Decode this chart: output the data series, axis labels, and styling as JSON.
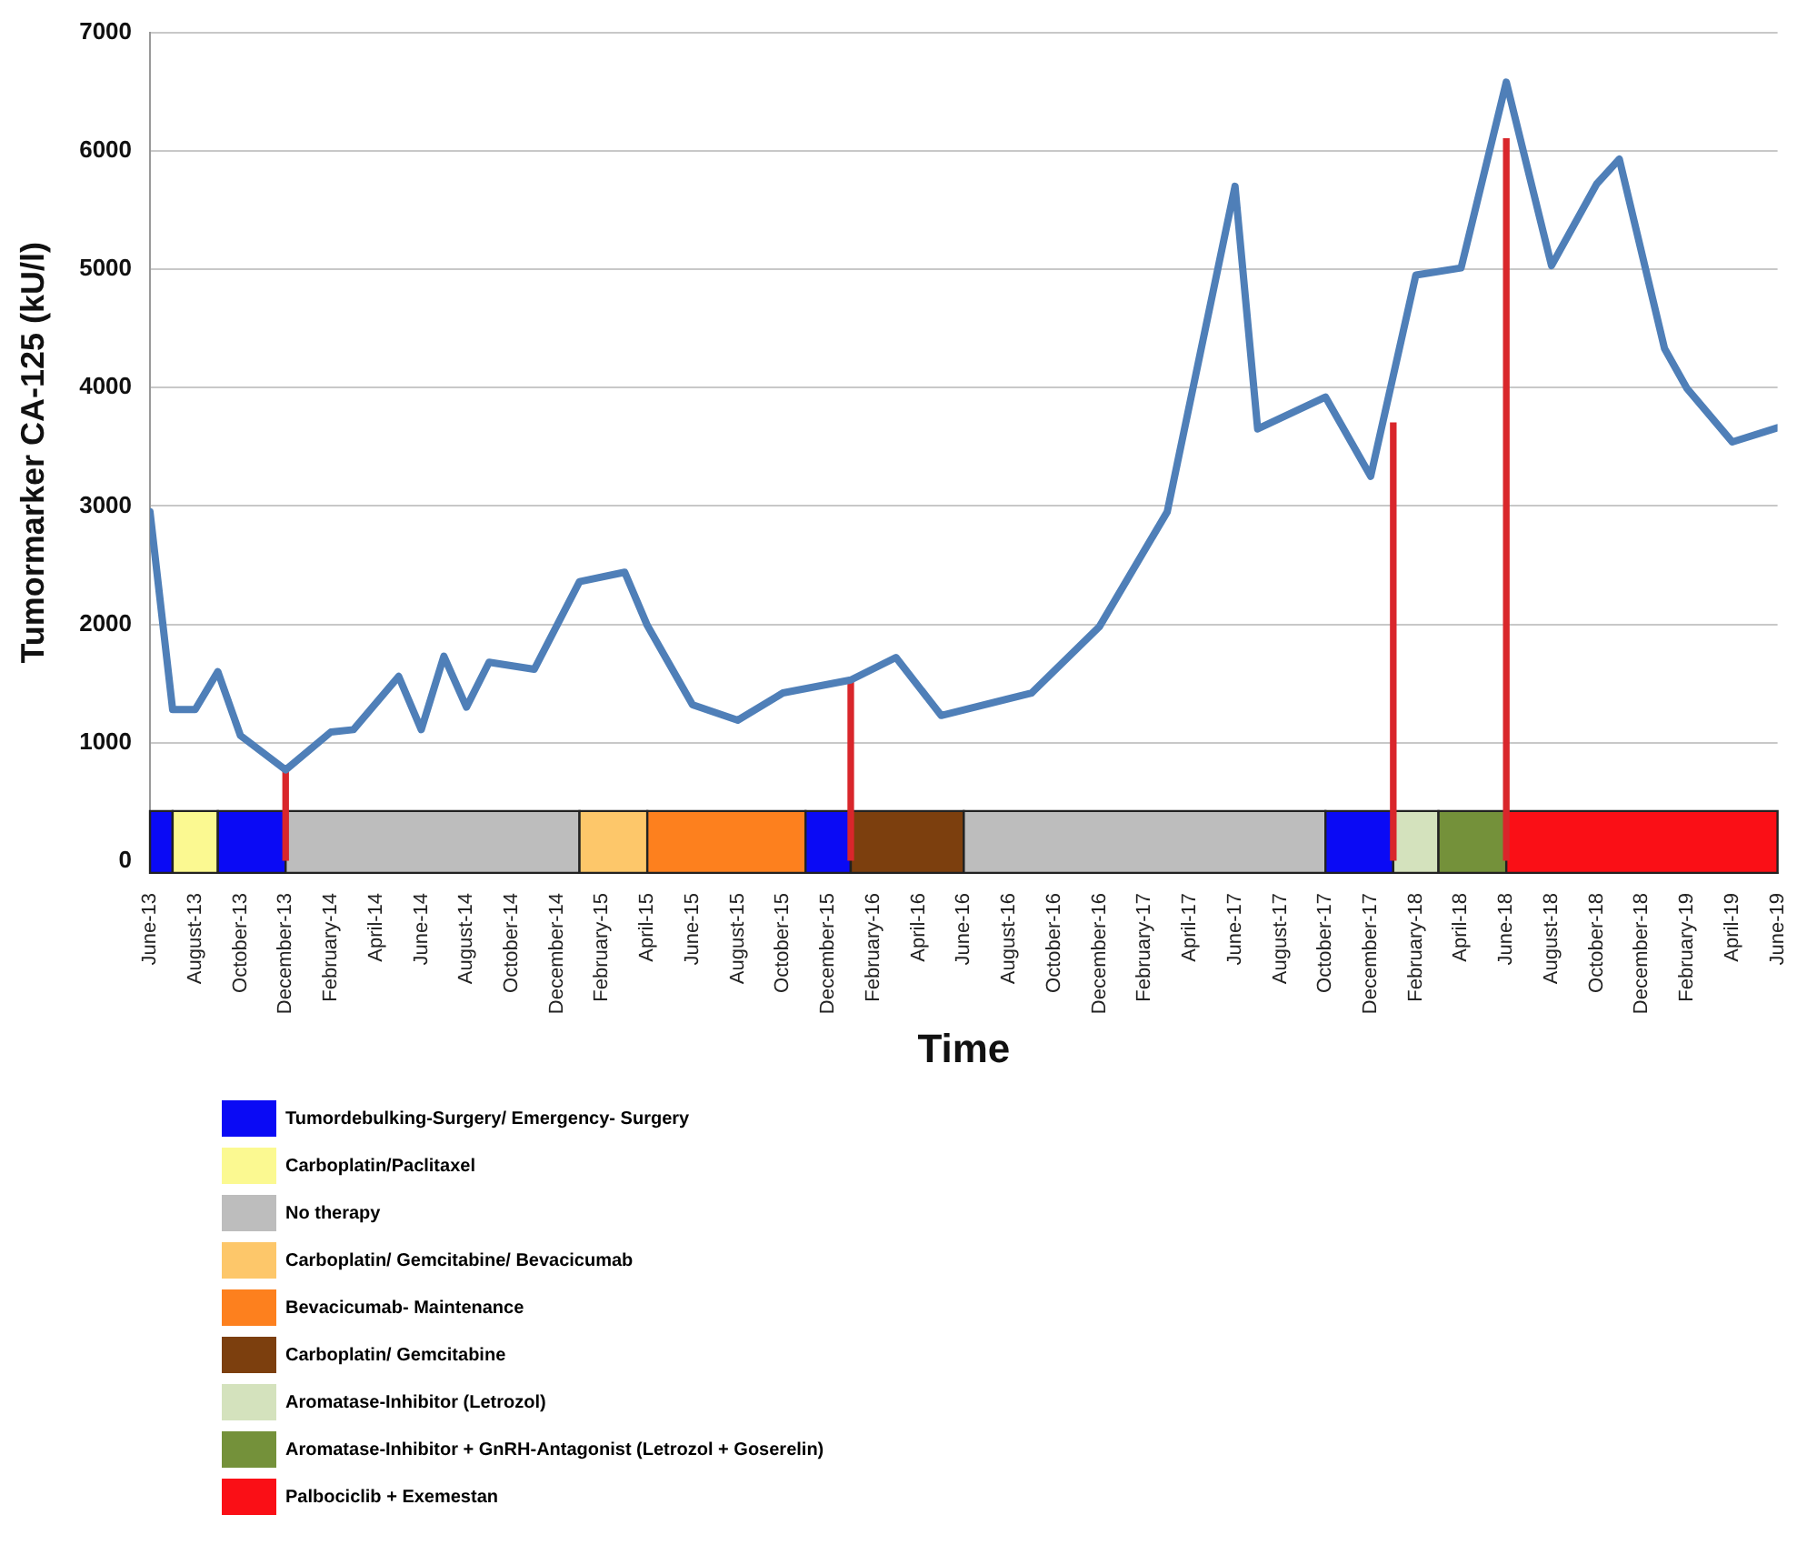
{
  "chart_data": {
    "type": "line",
    "ylabel": "Tumormarker CA-125 (kU/l)",
    "xlabel": "Time",
    "xlim": [
      "2013-06",
      "2019-06"
    ],
    "ylim": [
      -100,
      7000
    ],
    "yticks": [
      0,
      1000,
      2000,
      3000,
      4000,
      5000,
      6000,
      7000
    ],
    "xticks": [
      {
        "value": "2013-06",
        "label": "June-13"
      },
      {
        "value": "2013-08",
        "label": "August-13"
      },
      {
        "value": "2013-10",
        "label": "October-13"
      },
      {
        "value": "2013-12",
        "label": "December-13"
      },
      {
        "value": "2014-02",
        "label": "February-14"
      },
      {
        "value": "2014-04",
        "label": "April-14"
      },
      {
        "value": "2014-06",
        "label": "June-14"
      },
      {
        "value": "2014-08",
        "label": "August-14"
      },
      {
        "value": "2014-10",
        "label": "October-14"
      },
      {
        "value": "2014-12",
        "label": "December-14"
      },
      {
        "value": "2015-02",
        "label": "February-15"
      },
      {
        "value": "2015-04",
        "label": "April-15"
      },
      {
        "value": "2015-06",
        "label": "June-15"
      },
      {
        "value": "2015-08",
        "label": "August-15"
      },
      {
        "value": "2015-10",
        "label": "October-15"
      },
      {
        "value": "2015-12",
        "label": "December-15"
      },
      {
        "value": "2016-02",
        "label": "February-16"
      },
      {
        "value": "2016-04",
        "label": "April-16"
      },
      {
        "value": "2016-06",
        "label": "June-16"
      },
      {
        "value": "2016-08",
        "label": "August-16"
      },
      {
        "value": "2016-10",
        "label": "October-16"
      },
      {
        "value": "2016-12",
        "label": "December-16"
      },
      {
        "value": "2017-02",
        "label": "February-17"
      },
      {
        "value": "2017-04",
        "label": "April-17"
      },
      {
        "value": "2017-06",
        "label": "June-17"
      },
      {
        "value": "2017-08",
        "label": "August-17"
      },
      {
        "value": "2017-10",
        "label": "October-17"
      },
      {
        "value": "2017-12",
        "label": "December-17"
      },
      {
        "value": "2018-02",
        "label": "February-18"
      },
      {
        "value": "2018-04",
        "label": "April-18"
      },
      {
        "value": "2018-06",
        "label": "June-18"
      },
      {
        "value": "2018-08",
        "label": "August-18"
      },
      {
        "value": "2018-10",
        "label": "October-18"
      },
      {
        "value": "2018-12",
        "label": "December-18"
      },
      {
        "value": "2019-02",
        "label": "February-19"
      },
      {
        "value": "2019-04",
        "label": "April-19"
      },
      {
        "value": "2019-06",
        "label": "June-19"
      }
    ],
    "grid": "y",
    "legend": "bottom",
    "marker": "none",
    "line_style": "solid",
    "series": [
      {
        "color": "#4f7fb8",
        "x": [
          "2013-06",
          "2013-07",
          "2013-08",
          "2013-09",
          "2013-10",
          "2013-12",
          "2014-02",
          "2014-03",
          "2014-05",
          "2014-06",
          "2014-07",
          "2014-08",
          "2014-09",
          "2014-11",
          "2015-01",
          "2015-03",
          "2015-04",
          "2015-06",
          "2015-08",
          "2015-10",
          "2016-01",
          "2016-03",
          "2016-05",
          "2016-09",
          "2016-12",
          "2017-03",
          "2017-06",
          "2017-07",
          "2017-10",
          "2017-12",
          "2018-02",
          "2018-04",
          "2018-06",
          "2018-08",
          "2018-10",
          "2018-11",
          "2019-01",
          "2019-02",
          "2019-04",
          "2019-06"
        ],
        "values": [
          2950,
          1280,
          1280,
          1600,
          1060,
          770,
          1090,
          1110,
          1560,
          1110,
          1730,
          1300,
          1680,
          1620,
          2360,
          2440,
          1990,
          1320,
          1190,
          1420,
          1530,
          1720,
          1230,
          1420,
          1980,
          2950,
          5700,
          3650,
          3920,
          3250,
          4950,
          5010,
          6580,
          5030,
          5720,
          5930,
          4330,
          3990,
          3540,
          3660
        ]
      },
      {
        "type": "bar",
        "color": "#d9262b",
        "x": [
          "2013-12",
          "2016-01",
          "2018-01",
          "2018-06"
        ],
        "values": [
          770,
          1540,
          3700,
          6100
        ]
      }
    ],
    "bands": [
      {
        "axis": "x",
        "from": "2013-06",
        "to": "2013-07",
        "label": "Tumordebulking-Surgery/ Emergency- Surgery",
        "color": "#0a0af5"
      },
      {
        "axis": "x",
        "from": "2013-07",
        "to": "2013-09",
        "label": "Carboplatin/Paclitaxel",
        "color": "#fbf991"
      },
      {
        "axis": "x",
        "from": "2013-09",
        "to": "2013-12",
        "color": "#0a0af5"
      },
      {
        "axis": "x",
        "from": "2013-12",
        "to": "2015-01",
        "label": "No therapy",
        "color": "#bdbdbd"
      },
      {
        "axis": "x",
        "from": "2015-01",
        "to": "2015-04",
        "label": "Carboplatin/ Gemcitabine/ Bevacicumab",
        "color": "#fdc76a"
      },
      {
        "axis": "x",
        "from": "2015-04",
        "to": "2015-11",
        "label": "Bevacicumab- Maintenance",
        "color": "#fd801e"
      },
      {
        "axis": "x",
        "from": "2015-11",
        "to": "2016-01",
        "color": "#0a0af5"
      },
      {
        "axis": "x",
        "from": "2016-01",
        "to": "2016-06",
        "label": "Carboplatin/ Gemcitabine",
        "color": "#7c3f0e"
      },
      {
        "axis": "x",
        "from": "2016-06",
        "to": "2017-10",
        "color": "#bdbdbd"
      },
      {
        "axis": "x",
        "from": "2017-10",
        "to": "2018-01",
        "color": "#0a0af5"
      },
      {
        "axis": "x",
        "from": "2018-01",
        "to": "2018-03",
        "label": "Aromatase-Inhibitor (Letrozol)",
        "color": "#d4e2bd"
      },
      {
        "axis": "x",
        "from": "2018-03",
        "to": "2018-06",
        "label": "Aromatase-Inhibitor + GnRH-Antagonist (Letrozol + Goserelin)",
        "color": "#74913a"
      },
      {
        "axis": "x",
        "from": "2018-06",
        "to": "2019-06",
        "label": "Palbociclib + Exemestan",
        "color": "#fa0f16"
      }
    ]
  }
}
